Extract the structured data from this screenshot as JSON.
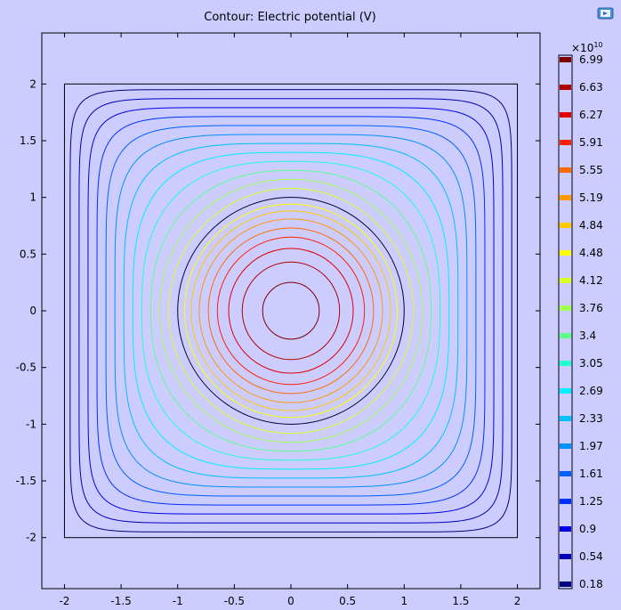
{
  "chart_data": {
    "type": "contour",
    "title": "Contour: Electric potential (V)",
    "x_ticks": [
      "-2",
      "-1.5",
      "-1",
      "-0.5",
      "0",
      "0.5",
      "1",
      "1.5",
      "2"
    ],
    "x_tick_values": [
      -2,
      -1.5,
      -1,
      -0.5,
      0,
      0.5,
      1,
      1.5,
      2
    ],
    "y_ticks": [
      "2",
      "1.5",
      "1",
      "0.5",
      "0",
      "-0.5",
      "-1",
      "-1.5",
      "-2"
    ],
    "y_tick_values": [
      2,
      1.5,
      1,
      0.5,
      0,
      -0.5,
      -1,
      -1.5,
      -2
    ],
    "xlim": [
      -2.2,
      2.2
    ],
    "ylim": [
      -2.45,
      2.45
    ],
    "grid": false,
    "legend_position": "right",
    "legend_multiplier": {
      "base": "×10",
      "exponent": "10"
    },
    "levels": [
      {
        "label": "6.99",
        "color": "#7f0000"
      },
      {
        "label": "6.63",
        "color": "#b20000"
      },
      {
        "label": "6.27",
        "color": "#e00000"
      },
      {
        "label": "5.91",
        "color": "#ff2000"
      },
      {
        "label": "5.55",
        "color": "#ff6a00"
      },
      {
        "label": "5.19",
        "color": "#ff9800"
      },
      {
        "label": "4.84",
        "color": "#ffc800"
      },
      {
        "label": "4.48",
        "color": "#ffff00"
      },
      {
        "label": "4.12",
        "color": "#d8ff2a"
      },
      {
        "label": "3.76",
        "color": "#a0ff50"
      },
      {
        "label": "3.4",
        "color": "#5cff8c"
      },
      {
        "label": "3.05",
        "color": "#20ffd0"
      },
      {
        "label": "2.69",
        "color": "#00f0ff"
      },
      {
        "label": "2.33",
        "color": "#00c0ff"
      },
      {
        "label": "1.97",
        "color": "#0090ff"
      },
      {
        "label": "1.61",
        "color": "#0060ff"
      },
      {
        "label": "1.25",
        "color": "#0030ff"
      },
      {
        "label": "0.9",
        "color": "#0000e8"
      },
      {
        "label": "0.54",
        "color": "#0000b8"
      },
      {
        "label": "0.18",
        "color": "#000080"
      }
    ],
    "outer_square_half_width": 2,
    "inner_circle_radius": 1,
    "inner_contour_radii": [
      0.25,
      0.43,
      0.55,
      0.65,
      0.73,
      0.81,
      0.88,
      0.94
    ]
  }
}
